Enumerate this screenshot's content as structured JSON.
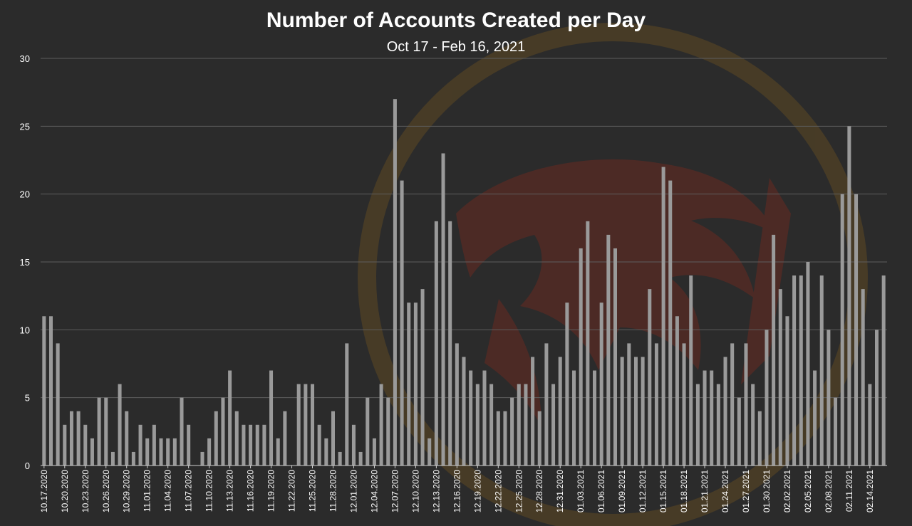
{
  "colors": {
    "background": "#2b2b2b",
    "bar": "#9a9a9a",
    "grid": "#5e5e5e",
    "text": "#ffffff",
    "watermark": "#8a2a1c",
    "watermark_ring": "#7a5a1e"
  },
  "chart_data": {
    "type": "bar",
    "title": "Number of Accounts Created per Day",
    "subtitle": "Oct 17 - Feb 16, 2021",
    "xlabel": "",
    "ylabel": "",
    "ylim": [
      0,
      30
    ],
    "yticks": [
      0,
      5,
      10,
      15,
      20,
      25,
      30
    ],
    "grid": true,
    "legend": "none",
    "x_tick_labels": [
      "10.17.2020",
      "10.20.2020",
      "10.23.2020",
      "10.26.2020",
      "10.29.2020",
      "11.01.2020",
      "11.04.2020",
      "11.07.2020",
      "11.10.2020",
      "11.13.2020",
      "11.16.2020",
      "11.19.2020",
      "11.22.2020",
      "11.25.2020",
      "11.28.2020",
      "12.01.2020",
      "12.04.2020",
      "12.07.2020",
      "12.10.2020",
      "12.13.2020",
      "12.16.2020",
      "12.19.2020",
      "12.22.2020",
      "12.25.2020",
      "12.28.2020",
      "12.31.2020",
      "01.03.2021",
      "01.06.2021",
      "01.09.2021",
      "01.12.2021",
      "01.15.2021",
      "01.18.2021",
      "01.21.2021",
      "01.24.2021",
      "01.27.2021",
      "01.30.2021",
      "02.02.2021",
      "02.05.2021",
      "02.08.2021",
      "02.11.2021",
      "02.14.2021"
    ],
    "categories": [
      "10.17.2020",
      "10.18.2020",
      "10.19.2020",
      "10.20.2020",
      "10.21.2020",
      "10.22.2020",
      "10.23.2020",
      "10.24.2020",
      "10.25.2020",
      "10.26.2020",
      "10.27.2020",
      "10.28.2020",
      "10.29.2020",
      "10.30.2020",
      "10.31.2020",
      "11.01.2020",
      "11.02.2020",
      "11.03.2020",
      "11.04.2020",
      "11.05.2020",
      "11.06.2020",
      "11.07.2020",
      "11.08.2020",
      "11.09.2020",
      "11.10.2020",
      "11.11.2020",
      "11.12.2020",
      "11.13.2020",
      "11.14.2020",
      "11.15.2020",
      "11.16.2020",
      "11.17.2020",
      "11.18.2020",
      "11.19.2020",
      "11.20.2020",
      "11.21.2020",
      "11.22.2020",
      "11.23.2020",
      "11.24.2020",
      "11.25.2020",
      "11.26.2020",
      "11.27.2020",
      "11.28.2020",
      "11.29.2020",
      "11.30.2020",
      "12.01.2020",
      "12.02.2020",
      "12.03.2020",
      "12.04.2020",
      "12.05.2020",
      "12.06.2020",
      "12.07.2020",
      "12.08.2020",
      "12.09.2020",
      "12.10.2020",
      "12.11.2020",
      "12.12.2020",
      "12.13.2020",
      "12.14.2020",
      "12.15.2020",
      "12.16.2020",
      "12.17.2020",
      "12.18.2020",
      "12.19.2020",
      "12.20.2020",
      "12.21.2020",
      "12.22.2020",
      "12.23.2020",
      "12.24.2020",
      "12.25.2020",
      "12.26.2020",
      "12.27.2020",
      "12.28.2020",
      "12.29.2020",
      "12.30.2020",
      "12.31.2020",
      "01.01.2021",
      "01.02.2021",
      "01.03.2021",
      "01.04.2021",
      "01.05.2021",
      "01.06.2021",
      "01.07.2021",
      "01.08.2021",
      "01.09.2021",
      "01.10.2021",
      "01.11.2021",
      "01.12.2021",
      "01.13.2021",
      "01.14.2021",
      "01.15.2021",
      "01.16.2021",
      "01.17.2021",
      "01.18.2021",
      "01.19.2021",
      "01.20.2021",
      "01.21.2021",
      "01.22.2021",
      "01.23.2021",
      "01.24.2021",
      "01.25.2021",
      "01.26.2021",
      "01.27.2021",
      "01.28.2021",
      "01.29.2021",
      "01.30.2021",
      "01.31.2021",
      "02.01.2021",
      "02.02.2021",
      "02.03.2021",
      "02.04.2021",
      "02.05.2021",
      "02.06.2021",
      "02.07.2021",
      "02.08.2021",
      "02.09.2021",
      "02.10.2021",
      "02.11.2021",
      "02.12.2021",
      "02.13.2021",
      "02.14.2021",
      "02.15.2021",
      "02.16.2021"
    ],
    "values": [
      11,
      11,
      9,
      3,
      4,
      4,
      3,
      2,
      5,
      5,
      1,
      6,
      4,
      1,
      3,
      2,
      3,
      2,
      2,
      2,
      5,
      3,
      0,
      1,
      2,
      4,
      5,
      7,
      4,
      3,
      3,
      3,
      3,
      7,
      2,
      4,
      0,
      6,
      6,
      6,
      3,
      2,
      4,
      1,
      9,
      3,
      1,
      5,
      2,
      6,
      5,
      27,
      21,
      12,
      12,
      13,
      2,
      18,
      23,
      18,
      9,
      8,
      7,
      6,
      7,
      6,
      4,
      4,
      5,
      6,
      6,
      8,
      4,
      9,
      6,
      8,
      12,
      7,
      16,
      18,
      7,
      12,
      17,
      16,
      8,
      9,
      8,
      8,
      13,
      9,
      22,
      21,
      11,
      9,
      14,
      6,
      7,
      7,
      6,
      8,
      9,
      5,
      9,
      6,
      4,
      10,
      17,
      13,
      11,
      14,
      14,
      15,
      7,
      14,
      10,
      5,
      20,
      25,
      20,
      13,
      6,
      10,
      14
    ]
  }
}
